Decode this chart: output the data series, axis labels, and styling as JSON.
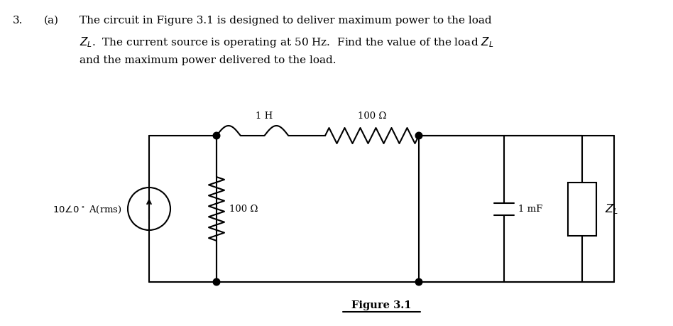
{
  "title_number": "3.",
  "title_letter": "(a)",
  "text_line1": "The circuit in Figure 3.1 is designed to deliver maximum power to the load",
  "text_line2": "$Z_L$.  The current source is operating at 50 Hz.  Find the value of the load $Z_L$",
  "text_line3": "and the maximum power delivered to the load.",
  "figure_label": "Figure 3.1",
  "label_1H": "1 H",
  "label_100ohm_top": "100 Ω",
  "label_100ohm_left": "100 Ω",
  "label_1mF": "1 mF",
  "label_ZL": "$Z_L$",
  "label_source": "$10\\angle0^\\circ$ A(rms)",
  "bg_color": "#ffffff",
  "line_color": "#000000",
  "font_size_text": 11,
  "font_size_label": 9.5
}
